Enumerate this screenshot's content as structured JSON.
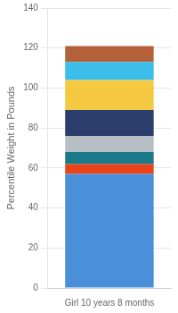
{
  "chart_data": {
    "type": "bar",
    "stacked": true,
    "categories": [
      "Girl 10 years 8 months"
    ],
    "series": [
      {
        "color": "#4a90d9",
        "values": [
          57
        ]
      },
      {
        "color": "#e8431a",
        "values": [
          5
        ]
      },
      {
        "color": "#1a7a8a",
        "values": [
          6
        ]
      },
      {
        "color": "#b8bfc4",
        "values": [
          8
        ]
      },
      {
        "color": "#2c3e6b",
        "values": [
          13
        ]
      },
      {
        "color": "#f5c842",
        "values": [
          15
        ]
      },
      {
        "color": "#3bbfea",
        "values": [
          9
        ]
      },
      {
        "color": "#b5613a",
        "values": [
          8
        ]
      }
    ],
    "ylabel": "Percentile Weight in Pounds",
    "ylim": [
      0,
      140
    ],
    "yticks": [
      0,
      20,
      40,
      60,
      80,
      100,
      120,
      140
    ],
    "grid": true
  }
}
